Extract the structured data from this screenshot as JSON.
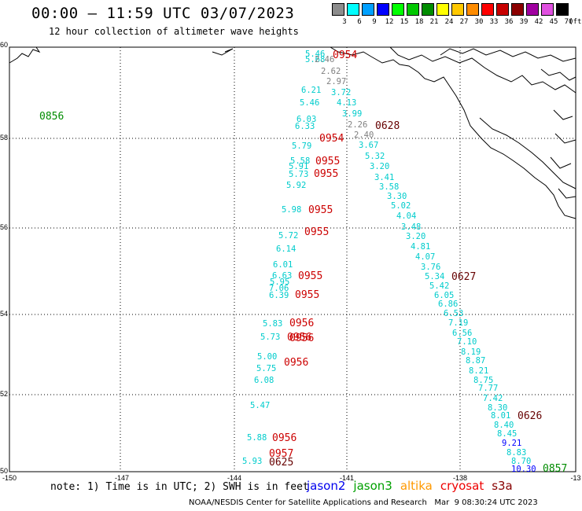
{
  "header": {
    "title": "00:00 – 11:59 UTC 03/07/2023",
    "subtitle": "12 hour collection of altimeter wave heights"
  },
  "legend": {
    "unit": "(ft)",
    "items": [
      {
        "label": "3",
        "color": "#8c8c8c"
      },
      {
        "label": "6",
        "color": "#00ffff"
      },
      {
        "label": "9",
        "color": "#00a0ff"
      },
      {
        "label": "12",
        "color": "#0000ff"
      },
      {
        "label": "15",
        "color": "#00ff00"
      },
      {
        "label": "18",
        "color": "#00c800"
      },
      {
        "label": "21",
        "color": "#008c00"
      },
      {
        "label": "24",
        "color": "#ffff00"
      },
      {
        "label": "27",
        "color": "#ffc800"
      },
      {
        "label": "30",
        "color": "#ff8c00"
      },
      {
        "label": "33",
        "color": "#ff0000"
      },
      {
        "label": "36",
        "color": "#c80000"
      },
      {
        "label": "39",
        "color": "#8c0000"
      },
      {
        "label": "42",
        "color": "#a000a0"
      },
      {
        "label": "45",
        "color": "#e050e0"
      },
      {
        "label": "70",
        "color": "#000000"
      }
    ]
  },
  "map": {
    "lat_labels": [
      "60",
      "58",
      "56",
      "54",
      "52",
      "50"
    ],
    "lon_labels": [
      "-150",
      "-147",
      "-144",
      "-141",
      "-138",
      "-13"
    ],
    "swh_readings": [
      {
        "v": "5.68",
        "c": "#00cccc"
      },
      {
        "v": "5.46",
        "c": "#00cccc"
      },
      {
        "v": "2.46",
        "c": "#808080"
      },
      {
        "v": "2.62",
        "c": "#808080"
      },
      {
        "v": "2.97",
        "c": "#808080"
      },
      {
        "v": "3.72",
        "c": "#00cccc"
      },
      {
        "v": "6.21",
        "c": "#00cccc"
      },
      {
        "v": "4.13",
        "c": "#00cccc"
      },
      {
        "v": "5.46",
        "c": "#00cccc"
      },
      {
        "v": "3.99",
        "c": "#00cccc"
      },
      {
        "v": "6.03",
        "c": "#00cccc"
      },
      {
        "v": "2.26",
        "c": "#808080"
      },
      {
        "v": "6.33",
        "c": "#00cccc"
      },
      {
        "v": "2.40",
        "c": "#808080"
      },
      {
        "v": "5.79",
        "c": "#00cccc"
      },
      {
        "v": "3.67",
        "c": "#00cccc"
      },
      {
        "v": "5.32",
        "c": "#00cccc"
      },
      {
        "v": "5.58",
        "c": "#00cccc"
      },
      {
        "v": "3.20",
        "c": "#00cccc"
      },
      {
        "v": "5.91",
        "c": "#00cccc"
      },
      {
        "v": "3.41",
        "c": "#00cccc"
      },
      {
        "v": "5.73",
        "c": "#00cccc"
      },
      {
        "v": "3.58",
        "c": "#00cccc"
      },
      {
        "v": "5.92",
        "c": "#00cccc"
      },
      {
        "v": "3.30",
        "c": "#00cccc"
      },
      {
        "v": "5.02",
        "c": "#00cccc"
      },
      {
        "v": "5.98",
        "c": "#00cccc"
      },
      {
        "v": "4.04",
        "c": "#00cccc"
      },
      {
        "v": "3.48",
        "c": "#00cccc"
      },
      {
        "v": "5.72",
        "c": "#00cccc"
      },
      {
        "v": "3.20",
        "c": "#00cccc"
      },
      {
        "v": "6.14",
        "c": "#00cccc"
      },
      {
        "v": "4.81",
        "c": "#00cccc"
      },
      {
        "v": "4.07",
        "c": "#00cccc"
      },
      {
        "v": "6.01",
        "c": "#00cccc"
      },
      {
        "v": "3.76",
        "c": "#00cccc"
      },
      {
        "v": "6.63",
        "c": "#00cccc"
      },
      {
        "v": "5.34",
        "c": "#00cccc"
      },
      {
        "v": "5.95",
        "c": "#00cccc"
      },
      {
        "v": "5.42",
        "c": "#00cccc"
      },
      {
        "v": "7.06",
        "c": "#00cccc"
      },
      {
        "v": "6.05",
        "c": "#00cccc"
      },
      {
        "v": "6.39",
        "c": "#00cccc"
      },
      {
        "v": "6.86",
        "c": "#00cccc"
      },
      {
        "v": "6.53",
        "c": "#00cccc"
      },
      {
        "v": "7.19",
        "c": "#00cccc"
      },
      {
        "v": "5.83",
        "c": "#00cccc"
      },
      {
        "v": "6.56",
        "c": "#00cccc"
      },
      {
        "v": "5.73",
        "c": "#00cccc"
      },
      {
        "v": "7.10",
        "c": "#00cccc"
      },
      {
        "v": "8.19",
        "c": "#00cccc"
      },
      {
        "v": "5.00",
        "c": "#00cccc"
      },
      {
        "v": "8.87",
        "c": "#00cccc"
      },
      {
        "v": "5.75",
        "c": "#00cccc"
      },
      {
        "v": "8.21",
        "c": "#00cccc"
      },
      {
        "v": "6.08",
        "c": "#00cccc"
      },
      {
        "v": "8.75",
        "c": "#00cccc"
      },
      {
        "v": "7.77",
        "c": "#00cccc"
      },
      {
        "v": "7.42",
        "c": "#00cccc"
      },
      {
        "v": "5.47",
        "c": "#00cccc"
      },
      {
        "v": "8.30",
        "c": "#00cccc"
      },
      {
        "v": "8.01",
        "c": "#00cccc"
      },
      {
        "v": "8.40",
        "c": "#00cccc"
      },
      {
        "v": "8.45",
        "c": "#00cccc"
      },
      {
        "v": "5.88",
        "c": "#00cccc"
      },
      {
        "v": "9.21",
        "c": "#0000ff"
      },
      {
        "v": "8.83",
        "c": "#00cccc"
      },
      {
        "v": "5.93",
        "c": "#00cccc"
      },
      {
        "v": "8.70",
        "c": "#00cccc"
      },
      {
        "v": "10.30",
        "c": "#0000ff"
      }
    ],
    "time_labels": [
      {
        "t": "0954",
        "c": "#cc0000"
      },
      {
        "t": "0628",
        "c": "#660000"
      },
      {
        "t": "0954",
        "c": "#cc0000"
      },
      {
        "t": "0955",
        "c": "#cc0000"
      },
      {
        "t": "0955",
        "c": "#cc0000"
      },
      {
        "t": "0955",
        "c": "#cc0000"
      },
      {
        "t": "0955",
        "c": "#cc0000"
      },
      {
        "t": "0955",
        "c": "#cc0000"
      },
      {
        "t": "0627",
        "c": "#660000"
      },
      {
        "t": "0955",
        "c": "#cc0000"
      },
      {
        "t": "0956",
        "c": "#cc0000"
      },
      {
        "t": "0956",
        "c": "#cc0000"
      },
      {
        "t": "0956",
        "c": "#cc0000"
      },
      {
        "t": "0626",
        "c": "#660000"
      },
      {
        "t": "0956",
        "c": "#cc0000"
      },
      {
        "t": "0956",
        "c": "#cc0000"
      },
      {
        "t": "0957",
        "c": "#cc0000"
      },
      {
        "t": "0625",
        "c": "#660000"
      },
      {
        "t": "0857",
        "c": "#008c00"
      },
      {
        "t": "0856",
        "c": "#008c00"
      }
    ]
  },
  "footer": {
    "note": "note: 1) Time is in UTC; 2) SWH is in feet",
    "satellites": [
      {
        "name": "jason2",
        "color": "#0000ee"
      },
      {
        "name": "jason3",
        "color": "#00a000"
      },
      {
        "name": "altika",
        "color": "#ff9900"
      },
      {
        "name": "cryosat",
        "color": "#ee0000"
      },
      {
        "name": "s3a",
        "color": "#880000"
      }
    ],
    "credit": "NOAA/NESDIS Center for Satellite Applications and Research   Mar  9 08:30:24 UTC 2023"
  }
}
